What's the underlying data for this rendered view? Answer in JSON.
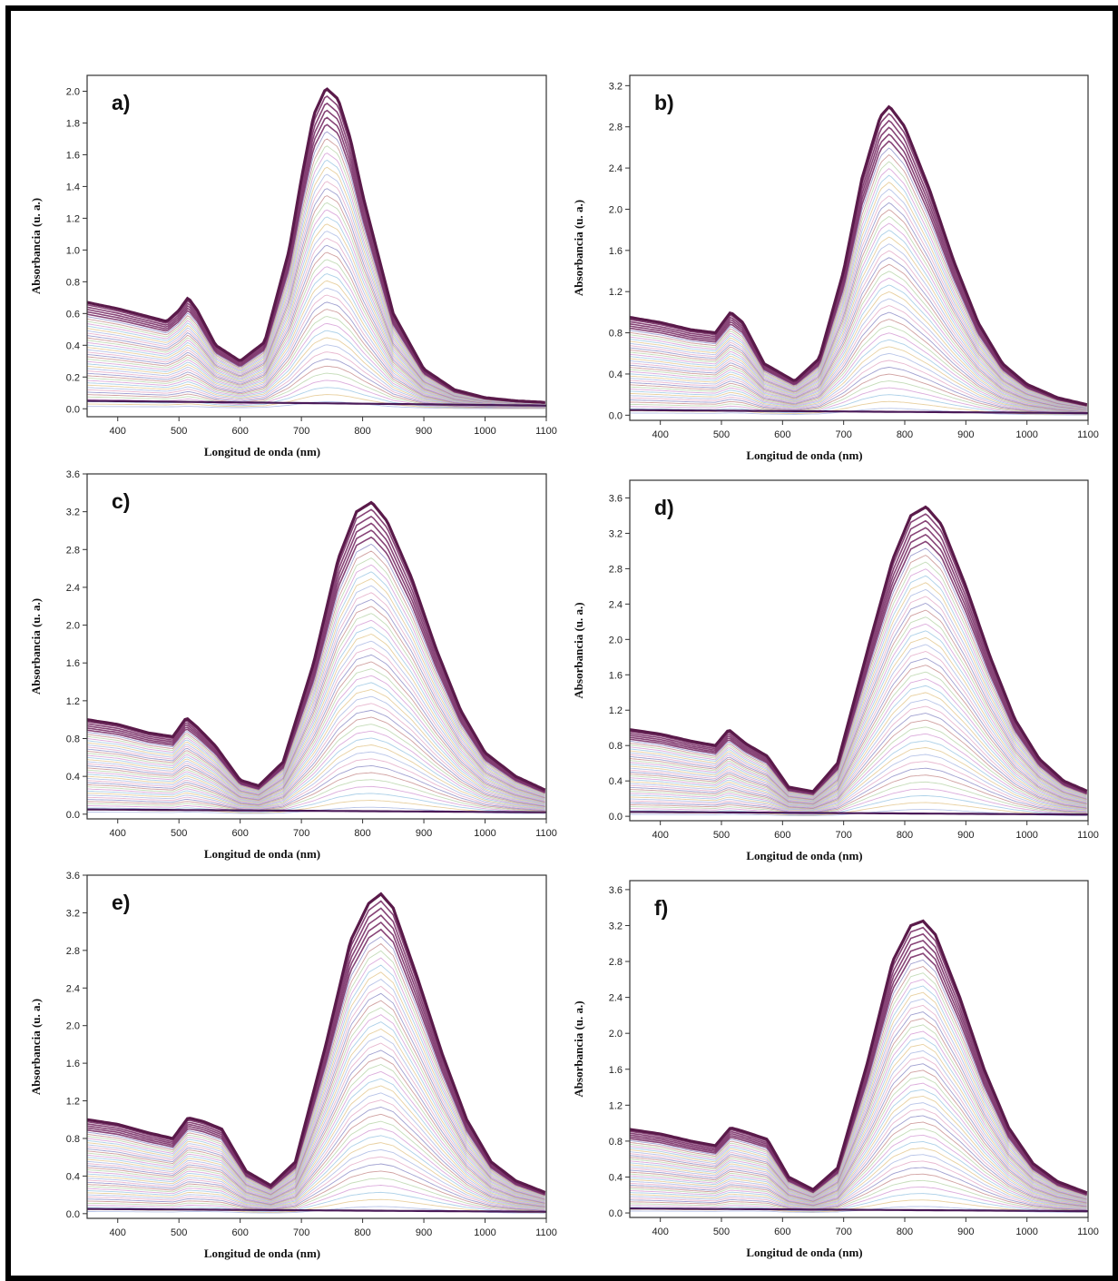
{
  "chart_data": [
    {
      "type": "line",
      "panel_label": "a)",
      "xlabel": "Longitud de onda (nm)",
      "ylabel": "Absorbancia (u. a.)",
      "xlim": [
        350,
        1100
      ],
      "ylim": [
        -0.05,
        2.1
      ],
      "xticks": [
        400,
        500,
        600,
        700,
        800,
        900,
        1000,
        1100
      ],
      "yticks": [
        0.0,
        0.2,
        0.4,
        0.6,
        0.8,
        1.0,
        1.2,
        1.4,
        1.6,
        1.8,
        2.0
      ],
      "ytick_labels": [
        "0.0",
        "0.2",
        "0.4",
        "0.6",
        "0.8",
        "1.0",
        "1.2",
        "1.4",
        "1.6",
        "1.8",
        "2.0"
      ],
      "series_count": 45,
      "final_spectrum": {
        "x": [
          350,
          400,
          450,
          480,
          500,
          515,
          530,
          560,
          600,
          640,
          680,
          700,
          720,
          740,
          760,
          780,
          800,
          850,
          900,
          950,
          1000,
          1050,
          1100
        ],
        "y": [
          0.67,
          0.63,
          0.58,
          0.55,
          0.62,
          0.7,
          0.62,
          0.4,
          0.3,
          0.42,
          1.0,
          1.45,
          1.85,
          2.02,
          1.95,
          1.7,
          1.35,
          0.6,
          0.25,
          0.12,
          0.07,
          0.05,
          0.04
        ]
      }
    },
    {
      "type": "line",
      "panel_label": "b)",
      "xlabel": "Longitud de onda (nm)",
      "ylabel": "Absorbancia (u. a.)",
      "xlim": [
        350,
        1100
      ],
      "ylim": [
        -0.05,
        3.3
      ],
      "xticks": [
        400,
        500,
        600,
        700,
        800,
        900,
        1000,
        1100
      ],
      "yticks": [
        0.0,
        0.4,
        0.8,
        1.2,
        1.6,
        2.0,
        2.4,
        2.8,
        3.2
      ],
      "ytick_labels": [
        "0.0",
        "0.4",
        "0.8",
        "1.2",
        "1.6",
        "2.0",
        "2.4",
        "2.8",
        "3.2"
      ],
      "series_count": 45,
      "final_spectrum": {
        "x": [
          350,
          400,
          450,
          490,
          515,
          535,
          570,
          620,
          660,
          700,
          730,
          760,
          775,
          800,
          840,
          880,
          920,
          960,
          1000,
          1050,
          1100
        ],
        "y": [
          0.95,
          0.9,
          0.83,
          0.8,
          1.0,
          0.9,
          0.5,
          0.33,
          0.55,
          1.4,
          2.3,
          2.9,
          3.0,
          2.8,
          2.2,
          1.5,
          0.9,
          0.5,
          0.3,
          0.17,
          0.1
        ]
      }
    },
    {
      "type": "line",
      "panel_label": "c)",
      "xlabel": "Longitud de onda (nm)",
      "ylabel": "Absorbancia (u. a.)",
      "xlim": [
        350,
        1100
      ],
      "ylim": [
        -0.05,
        3.6
      ],
      "xticks": [
        400,
        500,
        600,
        700,
        800,
        900,
        1000,
        1100
      ],
      "yticks": [
        0.0,
        0.4,
        0.8,
        1.2,
        1.6,
        2.0,
        2.4,
        2.8,
        3.2,
        3.6
      ],
      "ytick_labels": [
        "0.0",
        "0.4",
        "0.8",
        "1.2",
        "1.6",
        "2.0",
        "2.4",
        "2.8",
        "3.2",
        "3.6"
      ],
      "series_count": 45,
      "final_spectrum": {
        "x": [
          350,
          400,
          450,
          490,
          512,
          530,
          560,
          600,
          630,
          670,
          720,
          760,
          790,
          815,
          840,
          880,
          920,
          960,
          1000,
          1050,
          1100
        ],
        "y": [
          1.0,
          0.95,
          0.86,
          0.82,
          1.02,
          0.92,
          0.72,
          0.36,
          0.3,
          0.55,
          1.6,
          2.7,
          3.2,
          3.3,
          3.1,
          2.5,
          1.75,
          1.1,
          0.65,
          0.4,
          0.25
        ]
      }
    },
    {
      "type": "line",
      "panel_label": "d)",
      "xlabel": "Longitud de onda (nm)",
      "ylabel": "Absorbancia (u. a.)",
      "xlim": [
        350,
        1100
      ],
      "ylim": [
        -0.05,
        3.8
      ],
      "xticks": [
        400,
        500,
        600,
        700,
        800,
        900,
        1000,
        1100
      ],
      "yticks": [
        0.0,
        0.4,
        0.8,
        1.2,
        1.6,
        2.0,
        2.4,
        2.8,
        3.2,
        3.6
      ],
      "ytick_labels": [
        "0.0",
        "0.4",
        "0.8",
        "1.2",
        "1.6",
        "2.0",
        "2.4",
        "2.8",
        "3.2",
        "3.6"
      ],
      "series_count": 45,
      "final_spectrum": {
        "x": [
          350,
          400,
          450,
          490,
          512,
          540,
          575,
          610,
          650,
          690,
          740,
          780,
          810,
          835,
          860,
          900,
          940,
          980,
          1020,
          1060,
          1100
        ],
        "y": [
          0.98,
          0.93,
          0.85,
          0.8,
          0.98,
          0.82,
          0.68,
          0.33,
          0.28,
          0.6,
          1.9,
          2.9,
          3.4,
          3.5,
          3.3,
          2.6,
          1.8,
          1.1,
          0.65,
          0.4,
          0.28
        ]
      }
    },
    {
      "type": "line",
      "panel_label": "e)",
      "xlabel": "Longitud de onda (nm)",
      "ylabel": "Absorbancia (u. a.)",
      "xlim": [
        350,
        1100
      ],
      "ylim": [
        -0.05,
        3.6
      ],
      "xticks": [
        400,
        500,
        600,
        700,
        800,
        900,
        1000,
        1100
      ],
      "yticks": [
        0.0,
        0.4,
        0.8,
        1.2,
        1.6,
        2.0,
        2.4,
        2.8,
        3.2,
        3.6
      ],
      "ytick_labels": [
        "0.0",
        "0.4",
        "0.8",
        "1.2",
        "1.6",
        "2.0",
        "2.4",
        "2.8",
        "3.2",
        "3.6"
      ],
      "series_count": 45,
      "final_spectrum": {
        "x": [
          350,
          400,
          450,
          490,
          515,
          540,
          570,
          610,
          650,
          690,
          740,
          780,
          810,
          830,
          850,
          890,
          930,
          970,
          1010,
          1050,
          1100
        ],
        "y": [
          1.0,
          0.95,
          0.86,
          0.8,
          1.02,
          0.98,
          0.9,
          0.45,
          0.3,
          0.55,
          1.8,
          2.9,
          3.3,
          3.4,
          3.25,
          2.5,
          1.7,
          1.0,
          0.55,
          0.35,
          0.22
        ]
      }
    },
    {
      "type": "line",
      "panel_label": "f)",
      "xlabel": "Longitud de onda (nm)",
      "ylabel": "Absorbancia (u. a.)",
      "xlim": [
        350,
        1100
      ],
      "ylim": [
        -0.05,
        3.7
      ],
      "xticks": [
        400,
        500,
        600,
        700,
        800,
        900,
        1000,
        1100
      ],
      "yticks": [
        0.0,
        0.4,
        0.8,
        1.2,
        1.6,
        2.0,
        2.4,
        2.8,
        3.2,
        3.6
      ],
      "ytick_labels": [
        "0.0",
        "0.4",
        "0.8",
        "1.2",
        "1.6",
        "2.0",
        "2.4",
        "2.8",
        "3.2",
        "3.6"
      ],
      "series_count": 45,
      "final_spectrum": {
        "x": [
          350,
          400,
          450,
          490,
          515,
          540,
          575,
          610,
          650,
          690,
          740,
          780,
          810,
          830,
          850,
          890,
          930,
          970,
          1010,
          1050,
          1100
        ],
        "y": [
          0.93,
          0.88,
          0.8,
          0.75,
          0.95,
          0.9,
          0.82,
          0.4,
          0.26,
          0.5,
          1.7,
          2.8,
          3.2,
          3.25,
          3.1,
          2.4,
          1.6,
          0.95,
          0.55,
          0.35,
          0.22
        ]
      }
    }
  ],
  "colors": {
    "final_curve": "#5a1a4a",
    "curve_palette": [
      "#e0a0c0",
      "#a0b0e0",
      "#e0c080",
      "#90c0e0",
      "#d090d0",
      "#b0d0a0",
      "#c08080",
      "#8080c0"
    ]
  }
}
